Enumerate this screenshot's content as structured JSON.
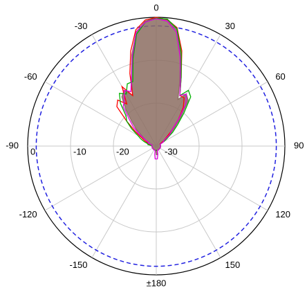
{
  "chart_data": {
    "type": "polar",
    "theta": [
      -180,
      -175,
      -170,
      -165,
      -160,
      -155,
      -150,
      -145,
      -140,
      -135,
      -130,
      -125,
      -120,
      -115,
      -110,
      -105,
      -100,
      -95,
      -90,
      -85,
      -80,
      -75,
      -70,
      -65,
      -60,
      -55,
      -50,
      -45,
      -40,
      -35,
      -30,
      -25,
      -20,
      -15,
      -10,
      -5,
      0,
      5,
      10,
      15,
      20,
      25,
      30,
      35,
      40,
      45,
      50,
      55,
      60,
      65,
      70,
      75,
      80,
      85,
      90,
      95,
      100,
      105,
      110,
      115,
      120,
      125,
      130,
      135,
      140,
      145,
      150,
      155,
      160,
      165,
      170,
      175
    ],
    "series": [
      {
        "color": "#8c6d62",
        "fill": true,
        "values": [
          -28,
          -29,
          -29,
          -29,
          -29,
          -29,
          -29,
          -29,
          -29,
          -29,
          -29,
          -29,
          -29,
          -29,
          -29,
          -29,
          -29,
          -29,
          -29,
          -29,
          -29,
          -29,
          -28,
          -28,
          -27,
          -26,
          -24,
          -22,
          -19,
          -16,
          -15,
          -17,
          -13,
          -8,
          -3,
          -0.8,
          0,
          -0.5,
          -2.5,
          -8,
          -14,
          -18,
          -16,
          -17,
          -21,
          -24,
          -26,
          -27,
          -28,
          -29,
          -29,
          -29,
          -29,
          -29,
          -29,
          -29,
          -29,
          -29,
          -29,
          -29,
          -29,
          -29,
          -29,
          -29,
          -29,
          -29,
          -29,
          -29,
          -29,
          -29,
          -28,
          -28
        ]
      },
      {
        "color": "#ff0000",
        "values": [
          -29,
          -29,
          -29,
          -29,
          -29,
          -29,
          -29,
          -29,
          -29,
          -29,
          -29,
          -29,
          -29,
          -29,
          -29,
          -29,
          -29,
          -29,
          -29,
          -29,
          -29,
          -28,
          -28,
          -27,
          -26,
          -24,
          -21,
          -17,
          -16,
          -18,
          -14,
          -17,
          -12,
          -7,
          -2.5,
          -0.5,
          0,
          -0.4,
          -2,
          -7,
          -13,
          -17,
          -17,
          -19,
          -22,
          -25,
          -27,
          -28,
          -29,
          -29,
          -29,
          -29,
          -29,
          -29,
          -29,
          -29,
          -29,
          -29,
          -29,
          -29,
          -29,
          -29,
          -29,
          -29,
          -29,
          -29,
          -29,
          -29,
          -29,
          -29,
          -29,
          -29
        ]
      },
      {
        "color": "#00b000",
        "values": [
          -29,
          -29,
          -29,
          -29,
          -29,
          -29,
          -29,
          -29,
          -29,
          -29,
          -29,
          -29,
          -29,
          -29,
          -29,
          -29,
          -29,
          -29,
          -29,
          -29,
          -28,
          -28,
          -27,
          -26,
          -25,
          -23,
          -21,
          -20,
          -17,
          -15,
          -16,
          -14,
          -14,
          -9,
          -3.5,
          -1,
          -0.2,
          -0.3,
          -2.2,
          -7.5,
          -13,
          -17,
          -15,
          -16,
          -20,
          -23,
          -25,
          -27,
          -28,
          -29,
          -29,
          -29,
          -29,
          -29,
          -29,
          -29,
          -29,
          -29,
          -29,
          -29,
          -29,
          -29,
          -29,
          -29,
          -29,
          -29,
          -29,
          -29,
          -29,
          -29,
          -29,
          -29
        ]
      },
      {
        "color": "#e000e0",
        "values": [
          -27,
          -27,
          -28,
          -29,
          -29,
          -29,
          -29,
          -29,
          -29,
          -29,
          -29,
          -29,
          -29,
          -29,
          -29,
          -29,
          -29,
          -29,
          -29,
          -29,
          -29,
          -29,
          -28,
          -28,
          -27,
          -25,
          -23,
          -21,
          -18,
          -17,
          -15,
          -16,
          -13,
          -8.5,
          -3,
          -1,
          -0.3,
          -0.8,
          -3,
          -8.5,
          -13.5,
          -17,
          -16,
          -18,
          -22,
          -25,
          -26,
          -28,
          -28,
          -29,
          -29,
          -29,
          -29,
          -29,
          -29,
          -29,
          -29,
          -29,
          -29,
          -29,
          -29,
          -29,
          -29,
          -29,
          -29,
          -29,
          -29,
          -29,
          -29,
          -29,
          -28,
          -27
        ]
      }
    ],
    "rlim": [
      -30,
      0
    ],
    "rticks": [
      0,
      -10,
      -20,
      -30
    ],
    "thetaticks": [
      0,
      30,
      60,
      90,
      120,
      150,
      {
        "value": 180,
        "label": "±180"
      },
      -150,
      -120,
      -90,
      -60,
      -30
    ],
    "reference_circle": {
      "value": -2,
      "color": "#2020e0"
    },
    "grid": true
  }
}
